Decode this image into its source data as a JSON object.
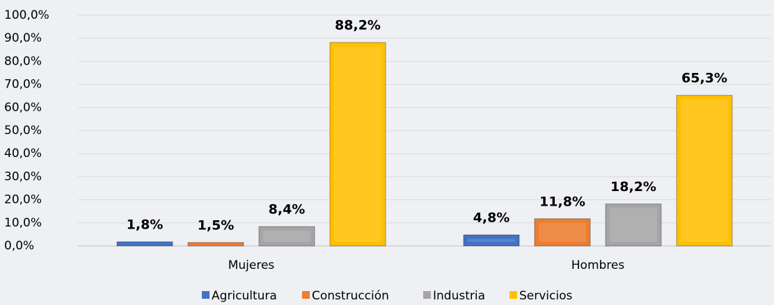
{
  "chart_data": {
    "type": "bar",
    "categories": [
      "Mujeres",
      "Hombres"
    ],
    "series": [
      {
        "name": "Agricultura",
        "color": "#4472c4",
        "values": [
          1.8,
          4.8
        ],
        "value_labels": [
          "1,8%",
          "4,8%"
        ]
      },
      {
        "name": "Construcción",
        "color": "#ed7d31",
        "values": [
          1.5,
          11.8
        ],
        "value_labels": [
          "1,5%",
          "11,8%"
        ]
      },
      {
        "name": "Industria",
        "color": "#a5a5a5",
        "values": [
          8.4,
          18.2
        ],
        "value_labels": [
          "8,4%",
          "18,2%"
        ]
      },
      {
        "name": "Servicios",
        "color": "#ffc000",
        "values": [
          88.2,
          65.3
        ],
        "value_labels": [
          "88,2%",
          "65,3%"
        ]
      }
    ],
    "ylim": [
      0,
      100
    ],
    "yticks": [
      {
        "value": 0,
        "label": "0,0%"
      },
      {
        "value": 10,
        "label": "10,0%"
      },
      {
        "value": 20,
        "label": "20,0%"
      },
      {
        "value": 30,
        "label": "30,0%"
      },
      {
        "value": 40,
        "label": "40,0%"
      },
      {
        "value": 50,
        "label": "50,0%"
      },
      {
        "value": 60,
        "label": "60,0%"
      },
      {
        "value": 70,
        "label": "70,0%"
      },
      {
        "value": 80,
        "label": "80,0%"
      },
      {
        "value": 90,
        "label": "90,0%"
      },
      {
        "value": 100,
        "label": "100,0%"
      }
    ],
    "grid": true,
    "legend": "bottom"
  }
}
